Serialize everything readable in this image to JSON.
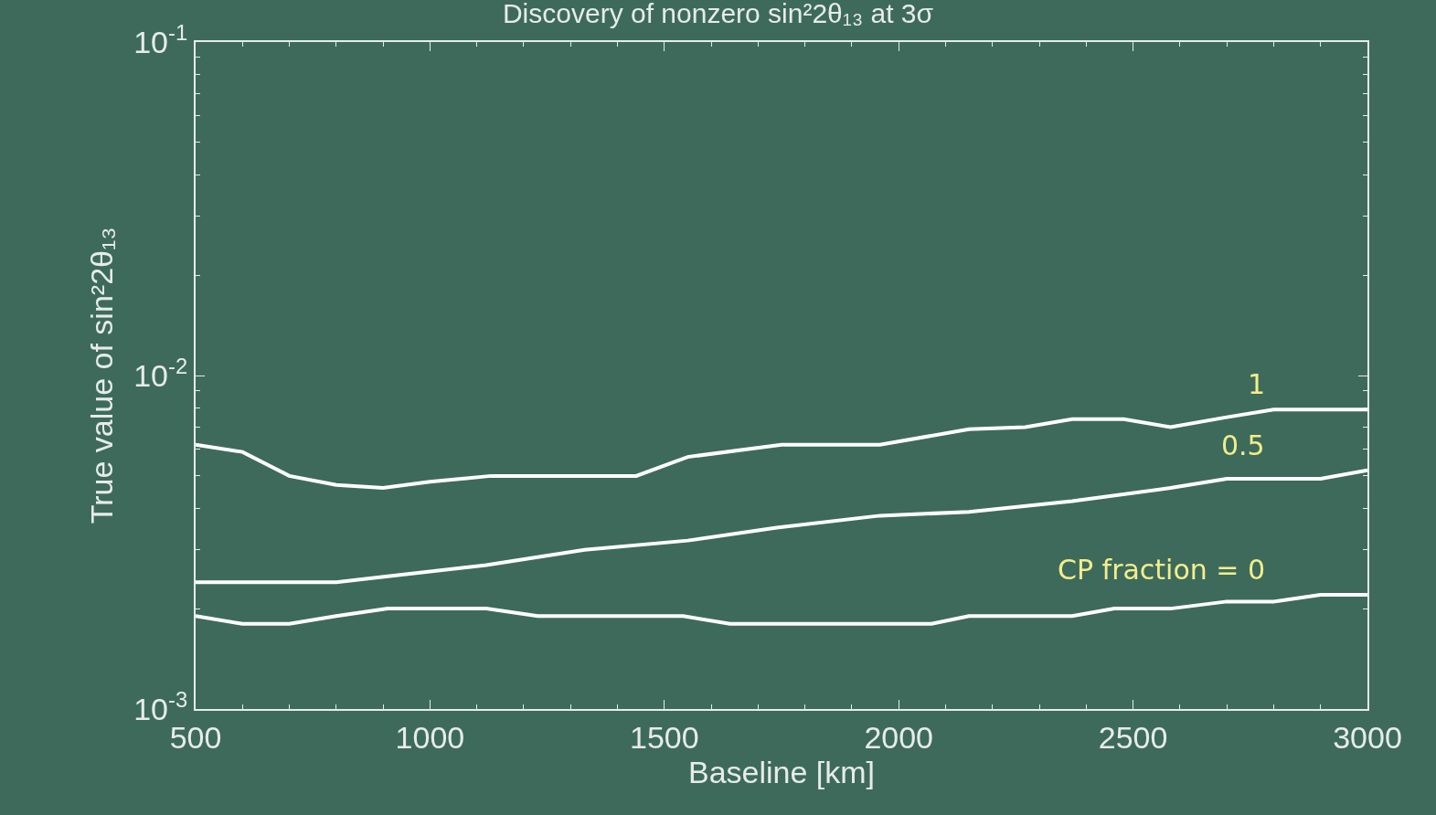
{
  "chart_data": {
    "type": "line",
    "title": "Discovery of nonzero sin²2θ₁₃ at 3σ",
    "xlabel": "Baseline [km]",
    "ylabel": "True value of sin²2θ₁₃",
    "log": "y",
    "grid": false,
    "marker": "none",
    "line_style": "solid",
    "xlim": [
      500,
      3000
    ],
    "xticks": [
      500,
      1000,
      1500,
      2000,
      2500,
      3000
    ],
    "ylim": [
      0.001,
      0.1
    ],
    "yticks": [
      {
        "value": 0.001,
        "label": "10$^{-3}$"
      },
      {
        "value": 0.01,
        "label": "10$^{-2}$"
      },
      {
        "value": 0.1,
        "label": "10$^{-1}$"
      }
    ],
    "series": [
      {
        "name": "1",
        "color": "#ffffff",
        "x": [
          500,
          600,
          700,
          800,
          900,
          1000,
          1130,
          1330,
          1440,
          1550,
          1750,
          1960,
          2150,
          2270,
          2370,
          2480,
          2580,
          2700,
          2800,
          3000
        ],
        "values": [
          0.0062,
          0.0059,
          0.005,
          0.0047,
          0.0046,
          0.0048,
          0.005,
          0.005,
          0.005,
          0.0057,
          0.0062,
          0.0062,
          0.0069,
          0.007,
          0.0074,
          0.0074,
          0.007,
          0.0075,
          0.0079,
          0.0079
        ]
      },
      {
        "name": "0.5",
        "color": "#ffffff",
        "x": [
          500,
          600,
          700,
          800,
          910,
          1120,
          1330,
          1550,
          1740,
          1960,
          2150,
          2370,
          2580,
          2700,
          2900,
          3000
        ],
        "values": [
          0.0024,
          0.0024,
          0.0024,
          0.0024,
          0.0025,
          0.0027,
          0.003,
          0.0032,
          0.0035,
          0.0038,
          0.0039,
          0.0042,
          0.0046,
          0.0049,
          0.0049,
          0.0052
        ]
      },
      {
        "name": "CP fraction = 0",
        "color": "#ffffff",
        "x": [
          500,
          600,
          700,
          800,
          910,
          1120,
          1230,
          1540,
          1640,
          2070,
          2150,
          2370,
          2460,
          2580,
          2700,
          2800,
          2900,
          3000
        ],
        "values": [
          0.0019,
          0.0018,
          0.0018,
          0.0019,
          0.002,
          0.002,
          0.0019,
          0.0019,
          0.0018,
          0.0018,
          0.0019,
          0.0019,
          0.002,
          0.002,
          0.0021,
          0.0021,
          0.0022,
          0.0022
        ]
      }
    ]
  }
}
